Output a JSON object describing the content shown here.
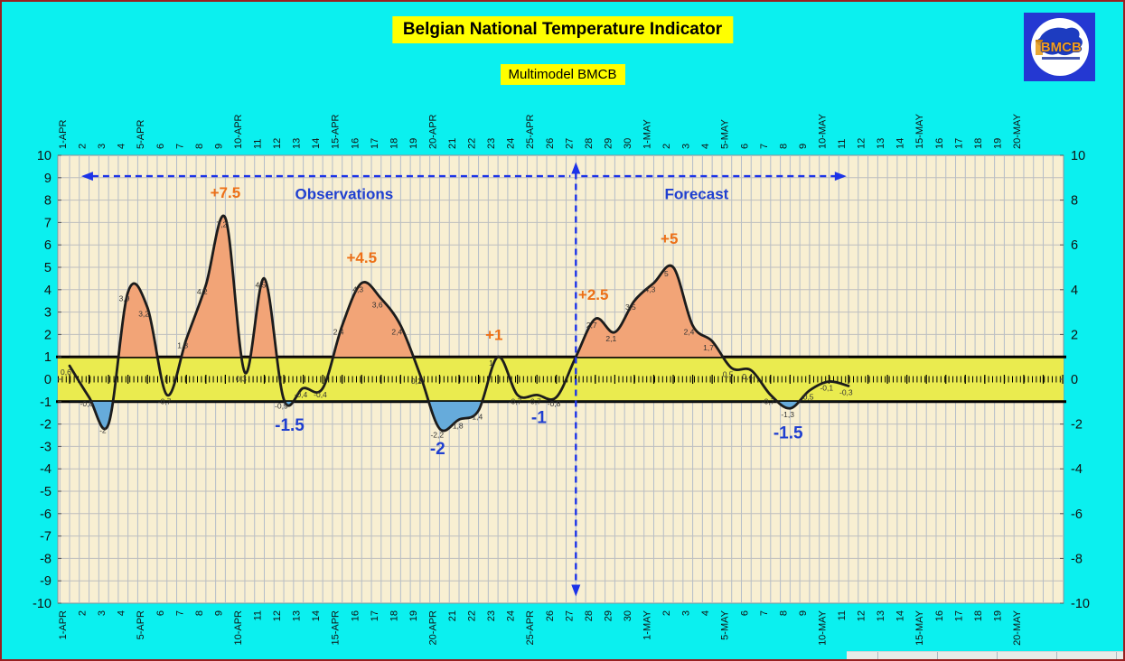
{
  "header": {
    "title": "Belgian National Temperature Indicator",
    "subtitle": "Multimodel BMCB"
  },
  "logo": {
    "acronym": "BMCB"
  },
  "colors": {
    "background": "#0BF0EF",
    "title_bg": "#FFFF00",
    "plot_bg": "#F8EFD2",
    "band": "#EAEB4F",
    "fill_above": "#F2A477",
    "fill_below": "#66ABDB",
    "curve": "#1C1C1C",
    "annotation_high": "#ED7017",
    "annotation_low": "#1F3FD0",
    "arrow": "#1C33E8",
    "grid_v": "#B4BDC9",
    "grid_h": "#BEBEBE",
    "axis_text": "#111111",
    "label_text": "#333333",
    "border": "#992020"
  },
  "chart_data": {
    "type": "line",
    "title": "Belgian National Temperature Indicator",
    "subtitle": "Multimodel BMCB",
    "x_axis_labels": [
      "1-APR",
      "2",
      "3",
      "4",
      "5-APR",
      "6",
      "7",
      "8",
      "9",
      "10-APR",
      "11",
      "12",
      "13",
      "14",
      "15-APR",
      "16",
      "17",
      "18",
      "19",
      "20-APR",
      "21",
      "22",
      "23",
      "24",
      "25-APR",
      "26",
      "27",
      "28",
      "29",
      "30",
      "1-MAY",
      "2",
      "3",
      "4",
      "5-MAY",
      "6",
      "7",
      "8",
      "9",
      "10-MAY",
      "11",
      "12",
      "13",
      "14",
      "15-MAY",
      "16",
      "17",
      "18",
      "19",
      "20-MAY"
    ],
    "y_axis": {
      "ylim": [
        -10,
        10
      ],
      "left_ticks": [
        "10",
        "9",
        "8",
        "7",
        "6",
        "5",
        "4",
        "3",
        "2",
        "1",
        "0",
        "-1",
        "-2",
        "-3",
        "-4",
        "-5",
        "-6",
        "-7",
        "-8",
        "-9",
        "-10"
      ],
      "right_ticks": [
        "10",
        "8",
        "6",
        "4",
        "2",
        "0",
        "-2",
        "-4",
        "-6",
        "-8",
        "-10"
      ]
    },
    "band": {
      "min": -1,
      "max": 1
    },
    "series": [
      {
        "name": "national-temperature-indicator",
        "days": [
          "1-APR",
          "2-APR",
          "3-APR",
          "4-APR",
          "5-APR",
          "6-APR",
          "7-APR",
          "8-APR",
          "9-APR",
          "10-APR",
          "11-APR",
          "12-APR",
          "13-APR",
          "14-APR",
          "15-APR",
          "16-APR",
          "17-APR",
          "18-APR",
          "19-APR",
          "20-APR",
          "21-APR",
          "22-APR",
          "23-APR",
          "24-APR",
          "25-APR",
          "26-APR",
          "27-APR",
          "28-APR",
          "29-APR",
          "30-APR",
          "1-MAY",
          "2-MAY",
          "3-MAY",
          "4-MAY",
          "5-MAY",
          "6-MAY",
          "7-MAY",
          "8-MAY",
          "9-MAY",
          "10-MAY",
          "11-MAY"
        ],
        "values": [
          0.6,
          -0.8,
          -2,
          3.9,
          3.2,
          -0.7,
          1.8,
          4.2,
          7.2,
          0.3,
          4.5,
          -0.9,
          -0.4,
          -0.4,
          2.4,
          4.3,
          3.6,
          2.4,
          0.2,
          -2.2,
          -1.8,
          -1.4,
          1,
          -0.7,
          -0.7,
          -0.8,
          1.0,
          2.7,
          2.1,
          3.5,
          4.3,
          5,
          2.4,
          1.7,
          0.5,
          0.4,
          -0.7,
          -1.3,
          -0.5,
          -0.1,
          -0.3
        ],
        "point_labels": [
          "0,6",
          "-0,8",
          "-2",
          "3,9",
          "3,2",
          "-0,7",
          "1,8",
          "4,2",
          "7,2",
          "0,3",
          "4,5",
          "-0,9",
          "-0,4",
          "-0,4",
          "2,4",
          "4,3",
          "3,6",
          "2,4",
          "0,2",
          "-2,2",
          "-1,8",
          "-1,4",
          "1",
          "-0,7",
          "-0,7",
          "-0,8",
          "",
          "2,7",
          "2,1",
          "3,5",
          "4,3",
          "5",
          "2,4",
          "1,7",
          "0,5",
          "0,4",
          "-0,7",
          "-1,3",
          "-0,5",
          "-0,1",
          "-0,3"
        ]
      }
    ],
    "annotations": [
      {
        "text": "+7.5",
        "x": 8.0,
        "y": 8.1,
        "type": "high"
      },
      {
        "text": "+4.5",
        "x": 15.0,
        "y": 5.2,
        "type": "high"
      },
      {
        "text": "+1",
        "x": 21.8,
        "y": 1.75,
        "type": "high"
      },
      {
        "text": "+2.5",
        "x": 26.9,
        "y": 3.55,
        "type": "high"
      },
      {
        "text": "+5",
        "x": 30.8,
        "y": 6.05,
        "type": "high"
      },
      {
        "text": "-1.5",
        "x": 11.3,
        "y": -2.3,
        "type": "low"
      },
      {
        "text": "-2",
        "x": 18.9,
        "y": -3.35,
        "type": "low"
      },
      {
        "text": "-1",
        "x": 24.1,
        "y": -1.95,
        "type": "low"
      },
      {
        "text": "-1.5",
        "x": 36.9,
        "y": -2.65,
        "type": "low"
      }
    ],
    "region_labels": [
      {
        "text": "Observations",
        "x": 14.1,
        "y": 8.05
      },
      {
        "text": "Forecast",
        "x": 32.2,
        "y": 8.05
      }
    ],
    "divider_index": 26,
    "arrows": {
      "y": 9.07,
      "left_tip": 0.6,
      "right_tip": 39.9,
      "v_top": 9.7,
      "v_bottom": -9.7
    }
  }
}
